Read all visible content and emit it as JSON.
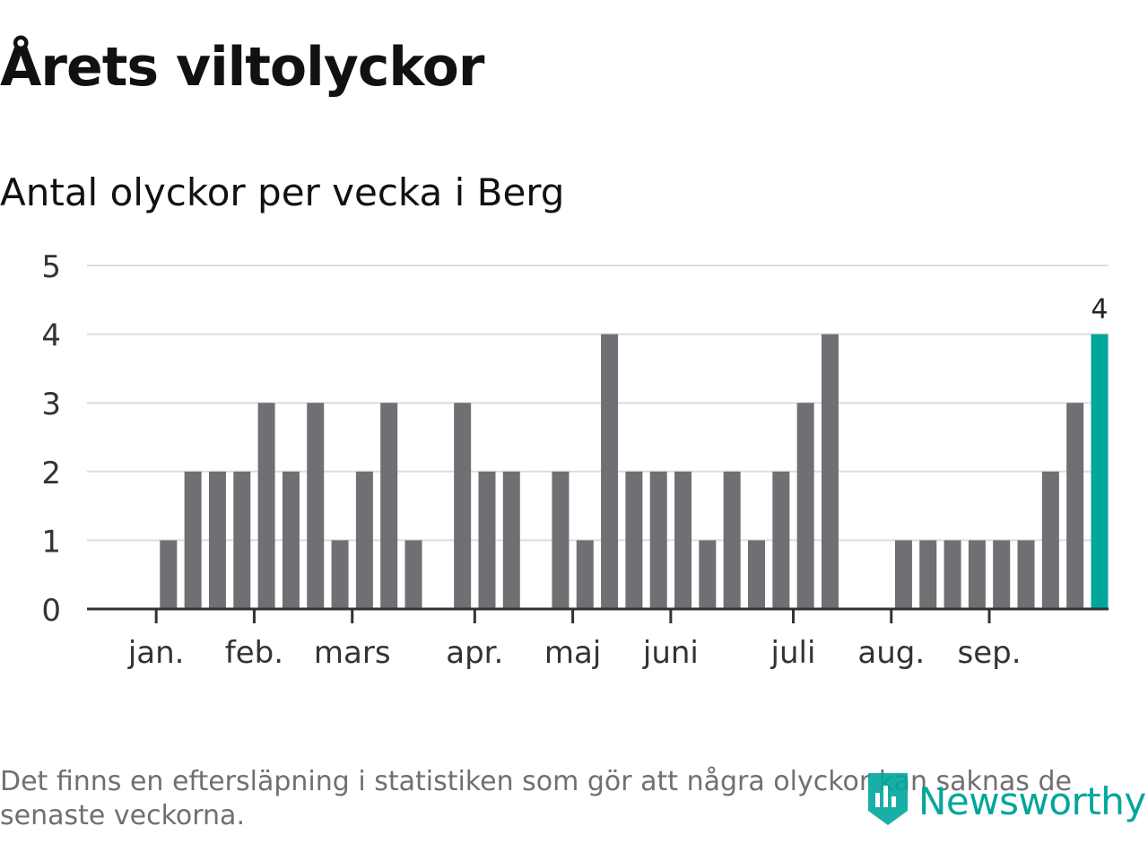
{
  "title": "Årets viltolyckor",
  "subtitle": "Antal olyckor per vecka i Berg",
  "footnote": "Det finns en eftersläpning i statistiken som gör att några olyckor kan saknas de senaste veckorna.",
  "brand": "Newsworthy",
  "colors": {
    "bar": "#706f74",
    "highlight": "#00a69c",
    "grid": "#dddddd",
    "axis": "#333333",
    "text": "#333333"
  },
  "chart_data": {
    "type": "bar",
    "title": "Årets viltolyckor",
    "subtitle": "Antal olyckor per vecka i Berg",
    "xlabel": "",
    "ylabel": "",
    "ylim": [
      0,
      5
    ],
    "yticks": [
      0,
      1,
      2,
      3,
      4,
      5
    ],
    "weeks": [
      1,
      2,
      3,
      4,
      5,
      6,
      7,
      8,
      9,
      10,
      11,
      12,
      13,
      14,
      15,
      16,
      17,
      18,
      19,
      20,
      21,
      22,
      23,
      24,
      25,
      26,
      27,
      28,
      29,
      30,
      31,
      32,
      33,
      34,
      35,
      36,
      37,
      38,
      39,
      40
    ],
    "values": [
      0,
      1,
      2,
      2,
      2,
      3,
      2,
      3,
      1,
      2,
      3,
      1,
      0,
      3,
      2,
      2,
      0,
      2,
      1,
      4,
      2,
      2,
      2,
      1,
      2,
      1,
      2,
      3,
      4,
      0,
      0,
      1,
      1,
      1,
      1,
      1,
      1,
      2,
      3,
      4
    ],
    "highlight_index": 39,
    "highlight_label": "4",
    "month_ticks": [
      {
        "label": "jan.",
        "week": 1.5
      },
      {
        "label": "feb.",
        "week": 5.5
      },
      {
        "label": "mars",
        "week": 9.5
      },
      {
        "label": "apr.",
        "week": 14.5
      },
      {
        "label": "maj",
        "week": 18.5
      },
      {
        "label": "juni",
        "week": 22.5
      },
      {
        "label": "juli",
        "week": 27.5
      },
      {
        "label": "aug.",
        "week": 31.5
      },
      {
        "label": "sep.",
        "week": 35.5
      }
    ],
    "grid": true,
    "legend": "none"
  }
}
